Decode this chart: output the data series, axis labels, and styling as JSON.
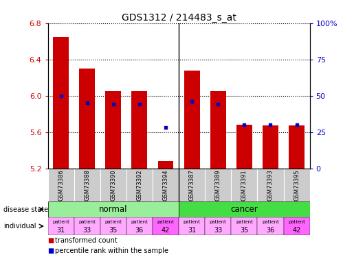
{
  "title": "GDS1312 / 214483_s_at",
  "samples": [
    "GSM73386",
    "GSM73388",
    "GSM73390",
    "GSM73392",
    "GSM73394",
    "GSM73387",
    "GSM73389",
    "GSM73391",
    "GSM73393",
    "GSM73395"
  ],
  "transformed_counts": [
    6.65,
    6.3,
    6.05,
    6.05,
    5.28,
    6.28,
    6.05,
    5.68,
    5.67,
    5.67
  ],
  "percentile_ranks": [
    50,
    45,
    44,
    44,
    28,
    46,
    44,
    30,
    30,
    30
  ],
  "ylim": [
    5.2,
    6.8
  ],
  "yticks": [
    5.2,
    5.6,
    6.0,
    6.4,
    6.8
  ],
  "y2lim": [
    0,
    100
  ],
  "y2ticks": [
    0,
    25,
    50,
    75,
    100
  ],
  "y2ticklabels": [
    "0",
    "25",
    "50",
    "75",
    "100%"
  ],
  "bar_color": "#cc0000",
  "dot_color": "#0000cc",
  "disease_state_color_normal": "#99ee99",
  "disease_state_color_cancer": "#44dd44",
  "individuals": [
    "31",
    "33",
    "35",
    "36",
    "42",
    "31",
    "33",
    "35",
    "36",
    "42"
  ],
  "indiv_colors": [
    "#ffaaff",
    "#ffaaff",
    "#ffaaff",
    "#ffaaff",
    "#ff66ff",
    "#ffaaff",
    "#ffaaff",
    "#ffaaff",
    "#ffaaff",
    "#ff66ff"
  ],
  "ylabel_color": "#cc0000",
  "y2label_color": "#0000cc",
  "sample_bg": "#cccccc",
  "grid_color": "#000000"
}
